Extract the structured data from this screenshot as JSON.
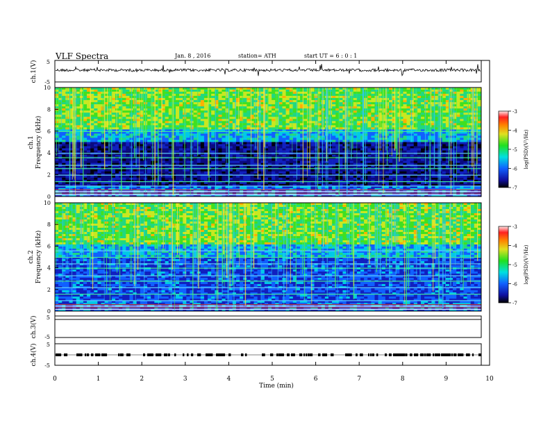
{
  "header": {
    "title": "VLF  Spectra",
    "date": "Jan. 8  , 2016",
    "station": "station= ATH",
    "start": "start  UT  =    6  : 0   : 1"
  },
  "colorbar": {
    "label": "log(PSD)(V²/Hz)",
    "ticks": [
      "-3",
      "-4",
      "-5",
      "-6",
      "-7"
    ]
  },
  "chart_data": [
    {
      "type": "line",
      "name": "ch1-waveform",
      "ylabel": "ch.1(V)",
      "ylim": [
        -5,
        5
      ],
      "yticks": [
        "5",
        "-5"
      ],
      "baseline": 0
    },
    {
      "type": "heatmap",
      "name": "ch1-spectrogram",
      "ylabel_channel": "ch.1",
      "ylabel": "Frequency  (kHz)",
      "ylim": [
        0,
        10
      ],
      "yticks": [
        "0",
        "2",
        "4",
        "6",
        "8",
        "10"
      ],
      "colorscale": {
        "min": -7,
        "max": -3,
        "unit": "log(PSD)(V²/Hz)"
      }
    },
    {
      "type": "heatmap",
      "name": "ch2-spectrogram",
      "ylabel_channel": "ch.2",
      "ylabel": "Frequency  (kHz)",
      "ylim": [
        0,
        10
      ],
      "yticks": [
        "0",
        "2",
        "4",
        "6",
        "8",
        "10"
      ],
      "colorscale": {
        "min": -7,
        "max": -3,
        "unit": "log(PSD)(V²/Hz)"
      }
    },
    {
      "type": "line",
      "name": "ch3-waveform",
      "ylabel": "ch.3(V)",
      "ylim": [
        -5,
        5
      ],
      "yticks": [
        "5",
        "-5"
      ]
    },
    {
      "type": "line",
      "name": "ch4-waveform",
      "ylabel": "ch.4(V)",
      "ylim": [
        -5,
        5
      ],
      "yticks": [
        "5",
        "-5"
      ]
    }
  ],
  "xaxis": {
    "label": "Time  (min)",
    "range": [
      0,
      10
    ],
    "ticks": [
      "0",
      "1",
      "2",
      "3",
      "4",
      "5",
      "6",
      "7",
      "8",
      "9",
      "10"
    ]
  }
}
